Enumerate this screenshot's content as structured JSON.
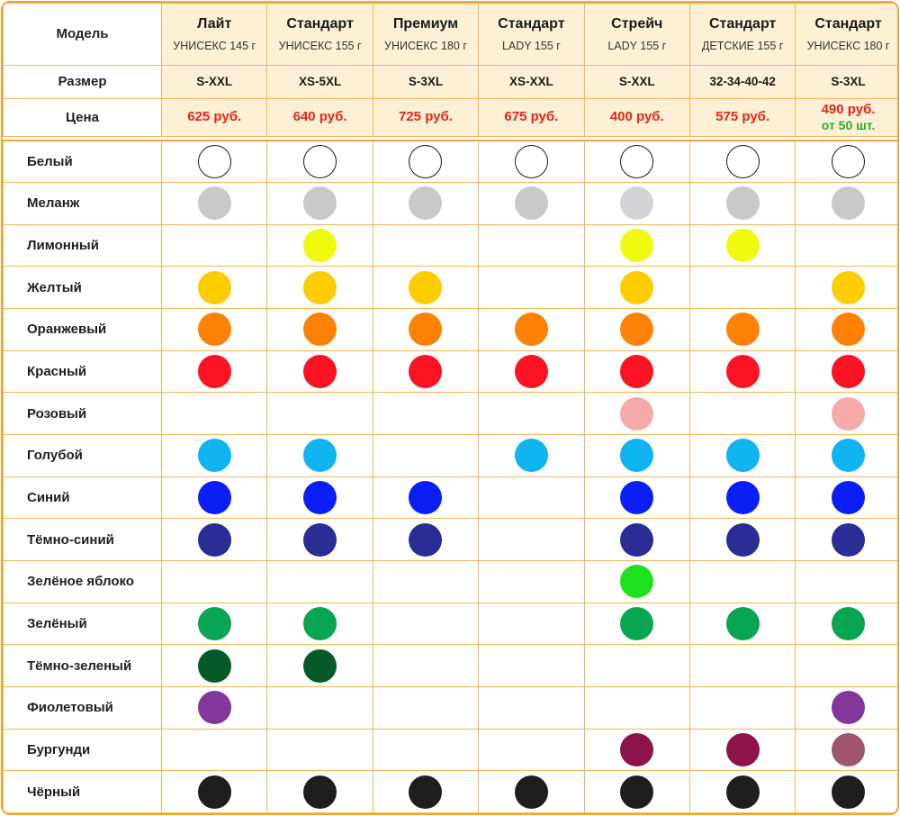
{
  "header": {
    "model_label": "Модель",
    "size_label": "Размер",
    "price_label": "Цена"
  },
  "models": [
    {
      "name": "Лайт",
      "sub": "УНИСЕКС 145 г",
      "size": "S-XXL",
      "price": "625 руб.",
      "price_note": ""
    },
    {
      "name": "Стандарт",
      "sub": "УНИСЕКС 155 г",
      "size": "XS-5XL",
      "price": "640 руб.",
      "price_note": ""
    },
    {
      "name": "Премиум",
      "sub": "УНИСЕКС 180 г",
      "size": "S-3XL",
      "price": "725 руб.",
      "price_note": ""
    },
    {
      "name": "Стандарт",
      "sub": "LADY 155 г",
      "size": "XS-XXL",
      "price": "675 руб.",
      "price_note": ""
    },
    {
      "name": "Стрейч",
      "sub": "LADY 155 г",
      "size": "S-XXL",
      "price": "400 руб.",
      "price_note": ""
    },
    {
      "name": "Стандарт",
      "sub": "ДЕТСКИЕ 155 г",
      "size": "32-34-40-42",
      "price": "575 руб.",
      "price_note": ""
    },
    {
      "name": "Стандарт",
      "sub": "УНИСЕКС 180 г",
      "size": "S-3XL",
      "price": "490 руб.",
      "price_note": "от 50 шт."
    }
  ],
  "colors": [
    {
      "name": "Белый",
      "icon": "white-swatch-icon",
      "avail": [
        "#ffffff",
        "#ffffff",
        "#ffffff",
        "#ffffff",
        "#ffffff",
        "#ffffff",
        "#ffffff"
      ]
    },
    {
      "name": "Меланж",
      "icon": "melange-swatch-icon",
      "avail": [
        "#c9c9c9",
        "#c9c9c9",
        "#c9c9c9",
        "#c9c9c9",
        "#d4d4d6",
        "#c9c9c9",
        "#c9c9c9"
      ]
    },
    {
      "name": "Лимонный",
      "icon": "lemon-swatch-icon",
      "avail": [
        "",
        "#f0fa0f",
        "",
        "",
        "#f0fa0f",
        "#f0fa0f",
        ""
      ]
    },
    {
      "name": "Желтый",
      "icon": "yellow-swatch-icon",
      "avail": [
        "#ffcc00",
        "#ffcc00",
        "#ffcc00",
        "",
        "#ffcc00",
        "",
        "#ffcc00"
      ]
    },
    {
      "name": "Оранжевый",
      "icon": "orange-swatch-icon",
      "avail": [
        "#ff8207",
        "#ff8207",
        "#ff8207",
        "#ff8207",
        "#ff8207",
        "#ff8207",
        "#ff8207"
      ]
    },
    {
      "name": "Красный",
      "icon": "red-swatch-icon",
      "avail": [
        "#fa1423",
        "#fa1423",
        "#fa1423",
        "#fa1423",
        "#fa1423",
        "#fa1423",
        "#fa1423"
      ]
    },
    {
      "name": "Розовый",
      "icon": "pink-swatch-icon",
      "avail": [
        "",
        "",
        "",
        "",
        "#f5aaaa",
        "",
        "#f5aaaa"
      ]
    },
    {
      "name": "Голубой",
      "icon": "light-blue-swatch-icon",
      "avail": [
        "#10b4f0",
        "#10b4f0",
        "",
        "#10b4f0",
        "#10b4f0",
        "#10b4f0",
        "#10b4f0"
      ]
    },
    {
      "name": "Синий",
      "icon": "blue-swatch-icon",
      "avail": [
        "#0a1ef5",
        "#0a1ef5",
        "#0a1ef5",
        "",
        "#0a1ef5",
        "#0a1ef5",
        "#0a1ef5"
      ]
    },
    {
      "name": "Тёмно-синий",
      "icon": "navy-swatch-icon",
      "avail": [
        "#2b2d96",
        "#2b2d96",
        "#2b2d96",
        "",
        "#2b2d96",
        "#2b2d96",
        "#2b2d96"
      ]
    },
    {
      "name": "Зелёное яблоко",
      "icon": "apple-green-swatch-icon",
      "avail": [
        "",
        "",
        "",
        "",
        "#1ee11e",
        "",
        ""
      ]
    },
    {
      "name": "Зелёный",
      "icon": "green-swatch-icon",
      "avail": [
        "#0aa552",
        "#0aa552",
        "",
        "",
        "#0aa552",
        "#0aa552",
        "#0aa552"
      ]
    },
    {
      "name": "Тёмно-зеленый",
      "icon": "dark-green-swatch-icon",
      "avail": [
        "#055a28",
        "#055a28",
        "",
        "",
        "",
        "",
        ""
      ]
    },
    {
      "name": "Фиолетовый",
      "icon": "purple-swatch-icon",
      "avail": [
        "#82379b",
        "",
        "",
        "",
        "",
        "",
        "#82379b"
      ]
    },
    {
      "name": "Бургунди",
      "icon": "burgundy-swatch-icon",
      "avail": [
        "",
        "",
        "",
        "",
        "#8c144b",
        "#8c144b",
        "#a0556e"
      ]
    },
    {
      "name": "Чёрный",
      "icon": "black-swatch-icon",
      "avail": [
        "#1e1e1e",
        "#1e1e1e",
        "#1e1e1e",
        "#1e1e1e",
        "#1e1e1e",
        "#1e1e1e",
        "#1e1e1e"
      ]
    }
  ]
}
